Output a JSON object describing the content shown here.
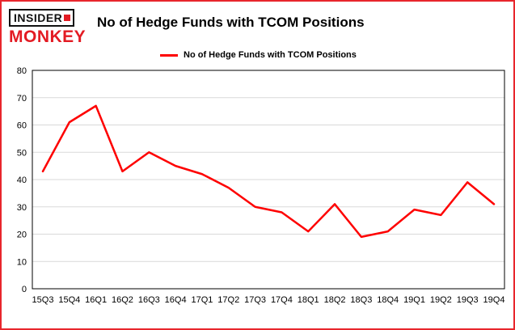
{
  "brand": {
    "line1": "INSIDER",
    "line2": "MONKEY",
    "accent_color": "#e31b23",
    "border_color": "#e8262d"
  },
  "header": {
    "title": "No of Hedge Funds with TCOM Positions"
  },
  "legend": {
    "label": "No of Hedge Funds with TCOM Positions",
    "line_color": "#fe0000"
  },
  "chart_data": {
    "type": "line",
    "title": "No of Hedge Funds with TCOM Positions",
    "categories": [
      "15Q3",
      "15Q4",
      "16Q1",
      "16Q2",
      "16Q3",
      "16Q4",
      "17Q1",
      "17Q2",
      "17Q3",
      "17Q4",
      "18Q1",
      "18Q2",
      "18Q3",
      "18Q4",
      "19Q1",
      "19Q2",
      "19Q3",
      "19Q4"
    ],
    "values": [
      43,
      61,
      67,
      43,
      50,
      45,
      42,
      37,
      30,
      28,
      21,
      31,
      19,
      21,
      29,
      27,
      39,
      31
    ],
    "xlabel": "",
    "ylabel": "",
    "ylim": [
      0,
      80
    ],
    "yticks": [
      0,
      10,
      20,
      30,
      40,
      50,
      60,
      70,
      80
    ],
    "grid": true,
    "legend_position": "top",
    "line_color": "#fe0000",
    "grid_color": "#d9d9d9",
    "axis_color": "#000000"
  }
}
